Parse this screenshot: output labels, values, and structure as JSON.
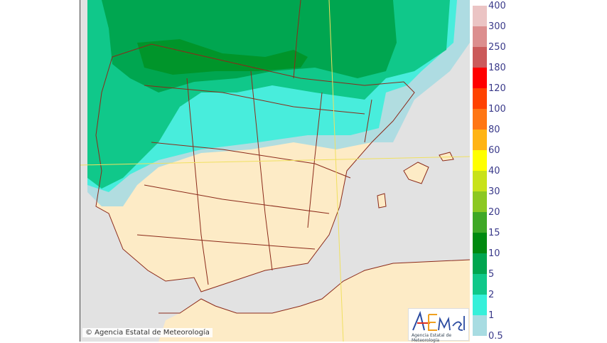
{
  "map": {
    "colors": {
      "sea": "#e2e2e2",
      "land": "#fdebc6",
      "border": "#8b2a1a",
      "graticule": "#f0e060"
    }
  },
  "legend": {
    "labels": [
      "400",
      "300",
      "250",
      "180",
      "120",
      "100",
      "80",
      "60",
      "40",
      "30",
      "20",
      "15",
      "10",
      "5",
      "2",
      "1",
      "0.5"
    ],
    "colors": [
      "#ebc4c4",
      "#dc8e8e",
      "#cb5a5a",
      "#ff0000",
      "#ff4200",
      "#ff7614",
      "#ffb414",
      "#ffff00",
      "#c8e21a",
      "#8cc822",
      "#3fa826",
      "#008a10",
      "#00a650",
      "#10c88a",
      "#36f0da",
      "#a8dce2"
    ]
  },
  "footer": {
    "copyright": "© Agencia Estatal de Meteorología",
    "logo_text": "AEmet",
    "logo_subtext": "Agencia Estatal de Meteorología"
  }
}
